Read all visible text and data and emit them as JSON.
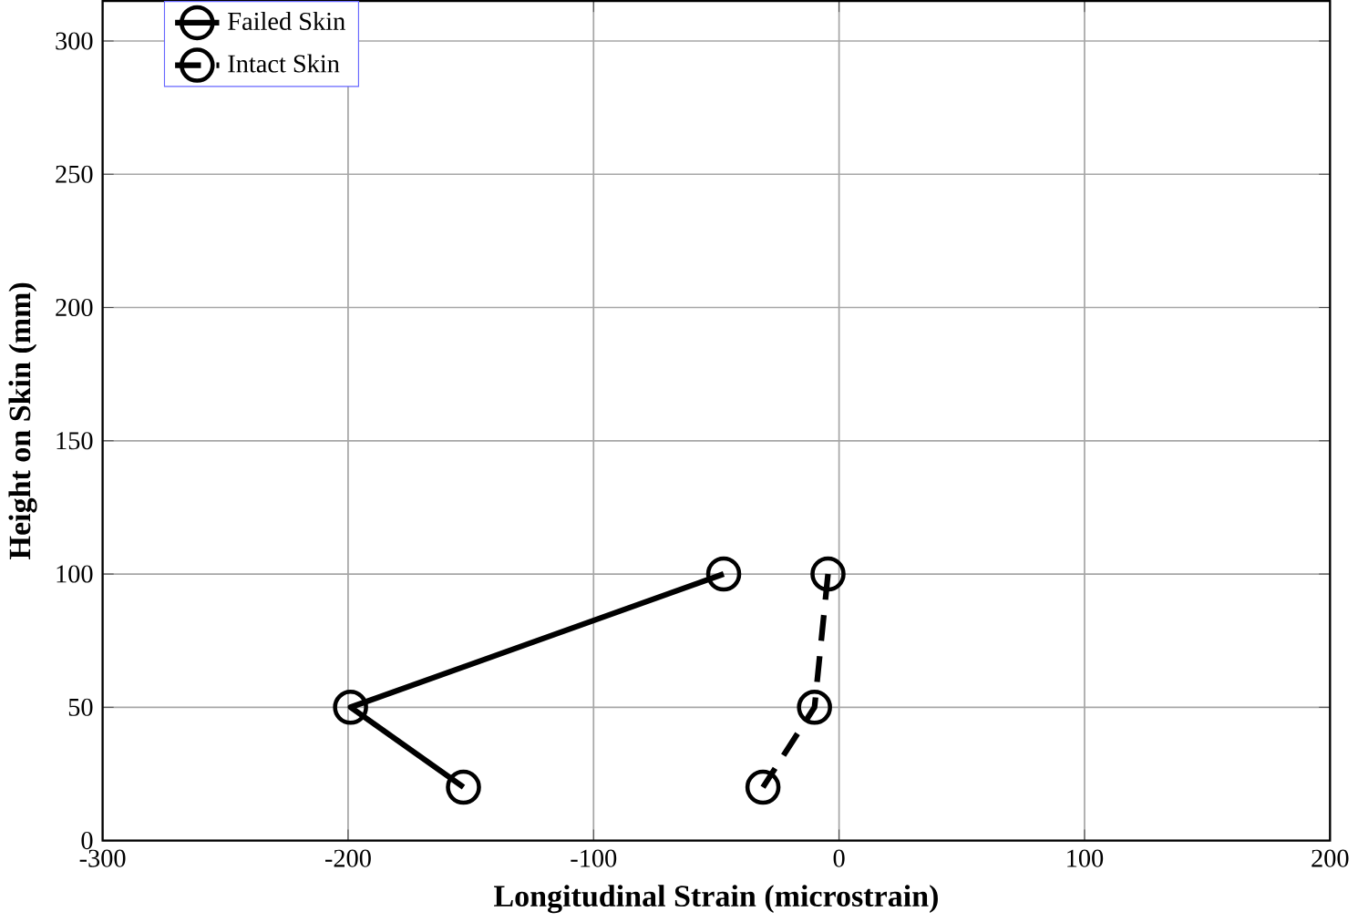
{
  "chart_data": {
    "type": "line",
    "xlabel": "Longitudinal Strain (microstrain)",
    "ylabel": "Height on Skin (mm)",
    "xlim": [
      -300,
      200
    ],
    "xticks": [
      -300,
      -200,
      -100,
      0,
      100,
      200
    ],
    "ylim": [
      0,
      315
    ],
    "yticks": [
      0,
      50,
      100,
      150,
      200,
      250,
      300
    ],
    "grid": true,
    "legend": "top left",
    "marker": "circle",
    "series": [
      {
        "name": "Failed Skin",
        "color": "#000000",
        "line_style": "solid",
        "x": [
          -47,
          -199,
          -153
        ],
        "values": [
          100,
          50,
          20
        ]
      },
      {
        "name": "Intact Skin",
        "color": "#000000",
        "line_style": "dashed",
        "x": [
          -4.5,
          -10,
          -31
        ],
        "values": [
          100,
          50,
          20
        ]
      }
    ]
  }
}
